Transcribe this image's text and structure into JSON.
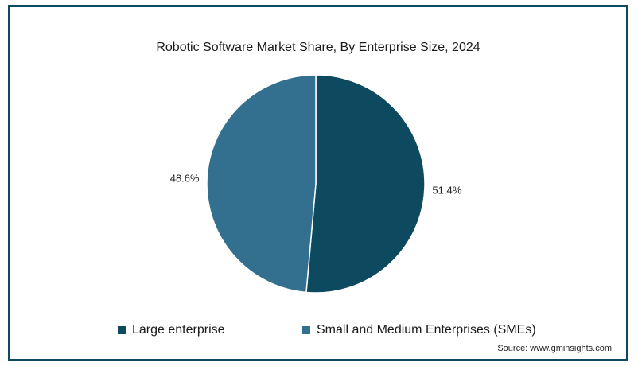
{
  "chart_data": {
    "type": "pie",
    "title": "Robotic Software Market Share, By Enterprise Size, 2024",
    "categories": [
      "Large enterprise",
      "Small and Medium Enterprises (SMEs)"
    ],
    "values": [
      51.4,
      48.6
    ],
    "labels": [
      "51.4%",
      "48.6%"
    ],
    "colors": [
      "#0d4a5f",
      "#336f8f"
    ],
    "legend_position": "bottom"
  },
  "source": "Source: www.gminsights.com"
}
